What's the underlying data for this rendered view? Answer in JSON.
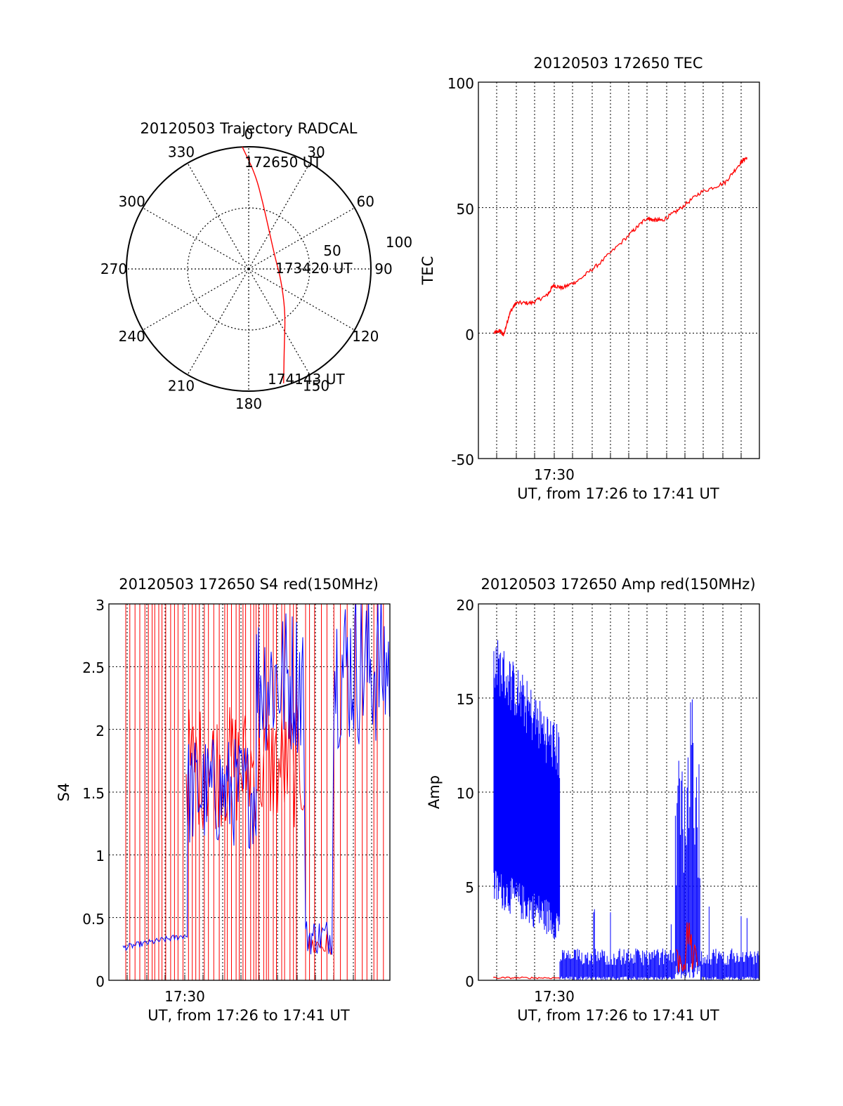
{
  "colors": {
    "red": "#ff0000",
    "blue": "#0000ff",
    "axis": "#000000"
  },
  "chart_data": [
    {
      "id": "trajectory",
      "type": "polar",
      "title": "20120503 Trajectory RADCAL",
      "angle_labels": [
        "0",
        "30",
        "60",
        "90",
        "120",
        "150",
        "180",
        "210",
        "240",
        "270",
        "300",
        "330"
      ],
      "radial_labels": [
        "50",
        "100"
      ],
      "series": [
        {
          "color": "#ff0000",
          "points": [
            {
              "az": 357,
              "zen": 90
            },
            {
              "az": 4,
              "zen": 70
            },
            {
              "az": 12,
              "zen": 50
            },
            {
              "az": 28,
              "zen": 32
            },
            {
              "az": 70,
              "zen": 21
            },
            {
              "az": 108,
              "zen": 25
            },
            {
              "az": 140,
              "zen": 42
            },
            {
              "az": 155,
              "zen": 62
            },
            {
              "az": 163,
              "zen": 88
            }
          ]
        }
      ],
      "annotations": [
        "172650 UT",
        "173420 UT",
        "174143 UT"
      ]
    },
    {
      "id": "tec",
      "type": "line",
      "title": "20120503 172650 TEC",
      "xlabel": "UT, from 17:26 to 17:41 UT",
      "ylabel": "TEC",
      "x_tick_label": "17:30",
      "ylim": [
        -50,
        100
      ],
      "yticks": [
        "100",
        "50",
        "0",
        "-50"
      ],
      "xlim": [
        17.4333,
        17.6833
      ],
      "grid": true,
      "series": [
        {
          "color": "#ff0000",
          "x": [
            17.4472,
            17.4528,
            17.4556,
            17.4611,
            17.4667,
            17.4806,
            17.4944,
            17.5,
            17.5083,
            17.5222,
            17.5417,
            17.5694,
            17.5833,
            17.5889,
            17.5972,
            17.6111,
            17.6306,
            17.6528,
            17.6667,
            17.6722
          ],
          "y": [
            0,
            1,
            -1,
            8,
            12,
            12,
            15,
            19,
            18,
            21,
            28,
            40,
            46,
            45,
            45,
            49,
            56,
            60,
            68,
            70
          ]
        }
      ]
    },
    {
      "id": "s4",
      "type": "line",
      "title": "20120503 172650 S4 red(150MHz)",
      "xlabel": "UT, from 17:26 to 17:41 UT",
      "ylabel": "S4",
      "x_tick_label": "17:30",
      "ylim": [
        0,
        3
      ],
      "yticks": [
        "3",
        "2.5",
        "2",
        "1.5",
        "1",
        "0.5",
        "0"
      ],
      "xlim": [
        17.4333,
        17.6833
      ],
      "grid": true,
      "series": [
        {
          "color": "#ff0000",
          "description": "red 150MHz, saturating spikes 0-3"
        },
        {
          "color": "#0000ff",
          "description": "blue, 0.25-0.35 early, 1-2 mid, ~3 later"
        }
      ]
    },
    {
      "id": "amp",
      "type": "line",
      "title": "20120503 172650 Amp red(150MHz)",
      "xlabel": "UT, from 17:26 to 17:41 UT",
      "ylabel": "Amp",
      "x_tick_label": "17:30",
      "ylim": [
        0,
        20
      ],
      "yticks": [
        "20",
        "15",
        "10",
        "5",
        "0"
      ],
      "xlim": [
        17.4333,
        17.6833
      ],
      "grid": true,
      "series": [
        {
          "color": "#0000ff",
          "description": "high amplitude 3-18 until ~17:30, then ~0.8, burst to 15 near 17:37"
        },
        {
          "color": "#ff0000",
          "description": "~0.1 baseline, small burst ~3 near 17:37"
        }
      ]
    }
  ]
}
